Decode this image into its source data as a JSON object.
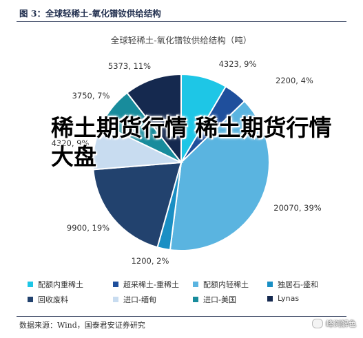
{
  "figure": {
    "title": "图 3：全球轻稀土-氧化镨钕供给结构",
    "source": "数据来源：Wind，国泰君安证券研究",
    "overlay_text": "稀土期货行情 稀土期货行情大盘",
    "watermark": "峰浏解色",
    "watermark_icon": "wechat-icon"
  },
  "chart_data": {
    "type": "pie",
    "title": "全球轻稀土-氧化镨钕供给结构（吨）",
    "legend_position": "bottom",
    "slices": [
      {
        "name": "配额内重稀土",
        "value": 4323,
        "percent": "9%",
        "label": "4323, 9%",
        "color": "#1ec6e6"
      },
      {
        "name": "超采稀土-重稀土",
        "value": 2200,
        "percent": "4%",
        "label": "2200, 4%",
        "color": "#1f4f9c"
      },
      {
        "name": "配额内轻稀土",
        "value": 20070,
        "percent": "39%",
        "label": "20070, 39%",
        "color": "#5ab4e0"
      },
      {
        "name": "独居石-盛和",
        "value": 1200,
        "percent": "2%",
        "label": "1200, 2%",
        "color": "#1a8fc4"
      },
      {
        "name": "回收废料",
        "value": 9900,
        "percent": "19%",
        "label": "9900, 19%",
        "color": "#22426e"
      },
      {
        "name": "进口-缅甸",
        "value": 4320,
        "percent": "9%",
        "label": "4320, 9%",
        "color": "#c8dcf0"
      },
      {
        "name": "进口-美国",
        "value": 3750,
        "percent": "7%",
        "label": "3750, 7%",
        "color": "#188c9c"
      },
      {
        "name": "Lynas",
        "value": 5373,
        "percent": "11%",
        "label": "5373, 11%",
        "color": "#15294f"
      }
    ]
  }
}
